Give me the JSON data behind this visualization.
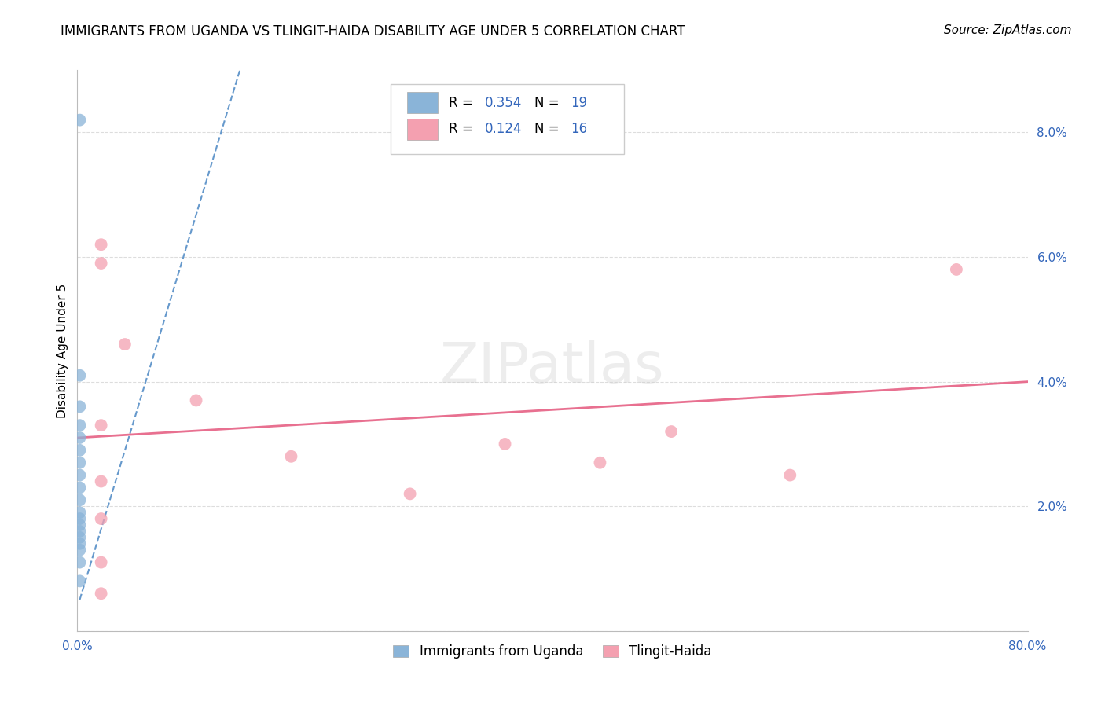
{
  "title": "IMMIGRANTS FROM UGANDA VS TLINGIT-HAIDA DISABILITY AGE UNDER 5 CORRELATION CHART",
  "source": "Source: ZipAtlas.com",
  "ylabel": "Disability Age Under 5",
  "watermark": "ZIPatlas",
  "legend_blue_r": "R = ",
  "legend_blue_r_val": "0.354",
  "legend_blue_n": "N = ",
  "legend_blue_n_val": "19",
  "legend_pink_r": "R = ",
  "legend_pink_r_val": "0.124",
  "legend_pink_n": "N = ",
  "legend_pink_n_val": "16",
  "legend_label_blue": "Immigrants from Uganda",
  "legend_label_pink": "Tlingit-Haida",
  "yticks": [
    0.0,
    0.02,
    0.04,
    0.06,
    0.08
  ],
  "ytick_labels": [
    "",
    "2.0%",
    "4.0%",
    "6.0%",
    "8.0%"
  ],
  "xlim": [
    0.0,
    0.8
  ],
  "ylim": [
    0.0,
    0.09
  ],
  "blue_points_x": [
    0.002,
    0.002,
    0.002,
    0.002,
    0.002,
    0.002,
    0.002,
    0.002,
    0.002,
    0.002,
    0.002,
    0.002,
    0.002,
    0.002,
    0.002,
    0.002,
    0.002,
    0.002,
    0.002
  ],
  "blue_points_y": [
    0.082,
    0.041,
    0.036,
    0.033,
    0.031,
    0.029,
    0.027,
    0.025,
    0.023,
    0.021,
    0.019,
    0.018,
    0.017,
    0.016,
    0.015,
    0.014,
    0.013,
    0.011,
    0.008
  ],
  "pink_points_x": [
    0.02,
    0.02,
    0.04,
    0.1,
    0.18,
    0.28,
    0.36,
    0.44,
    0.5,
    0.6,
    0.74,
    0.02,
    0.02,
    0.02,
    0.02,
    0.02
  ],
  "pink_points_y": [
    0.062,
    0.059,
    0.046,
    0.037,
    0.028,
    0.022,
    0.03,
    0.027,
    0.032,
    0.025,
    0.058,
    0.033,
    0.024,
    0.018,
    0.011,
    0.006
  ],
  "blue_line_x": [
    0.002,
    0.14
  ],
  "blue_line_y": [
    0.005,
    0.092
  ],
  "pink_line_x": [
    0.0,
    0.8
  ],
  "pink_line_y": [
    0.031,
    0.04
  ],
  "blue_color": "#8ab4d8",
  "pink_color": "#f4a0b0",
  "blue_line_color": "#6699cc",
  "pink_line_color": "#e87090",
  "grid_color": "#dddddd",
  "background_color": "#ffffff",
  "title_fontsize": 12,
  "source_fontsize": 11,
  "axis_label_fontsize": 11,
  "tick_fontsize": 11,
  "legend_fontsize": 12,
  "watermark_fontsize": 52,
  "watermark_color": "#cccccc",
  "watermark_alpha": 0.35,
  "point_size": 130
}
